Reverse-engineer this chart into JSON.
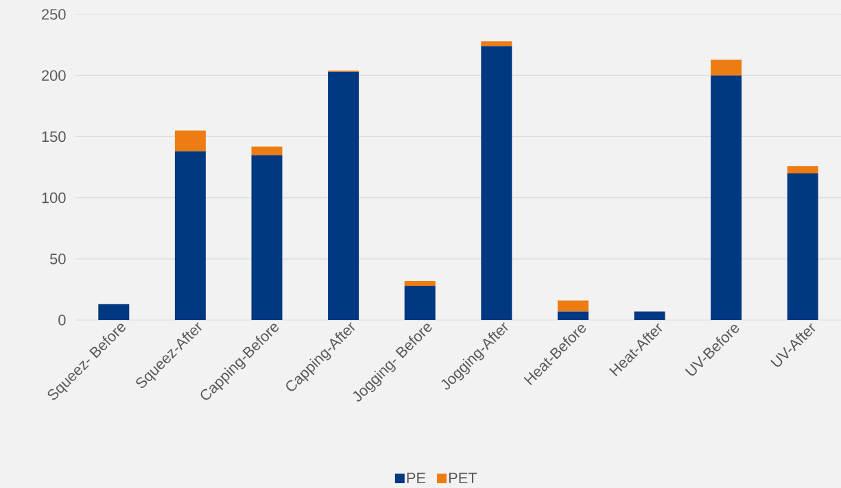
{
  "chart_data": {
    "type": "bar",
    "stacked": true,
    "categories": [
      "Squeez- Before",
      "Squeez-After",
      "Capping-Before",
      "Capping-After",
      "Jogging- Before",
      "Jogging-After",
      "Heat-Before",
      "Heat-After",
      "UV-Before",
      "UV-After"
    ],
    "series": [
      {
        "name": "PE",
        "color": "#003882",
        "values": [
          13,
          138,
          135,
          203,
          28,
          224,
          7,
          7,
          200,
          120
        ]
      },
      {
        "name": "PET",
        "color": "#ed7d12",
        "values": [
          0,
          17,
          7,
          1,
          4,
          4,
          9,
          0,
          13,
          6
        ]
      }
    ],
    "ylim": [
      0,
      250
    ],
    "yticks": [
      0,
      50,
      100,
      150,
      200,
      250
    ],
    "grid": "y",
    "legend": "bottom"
  }
}
